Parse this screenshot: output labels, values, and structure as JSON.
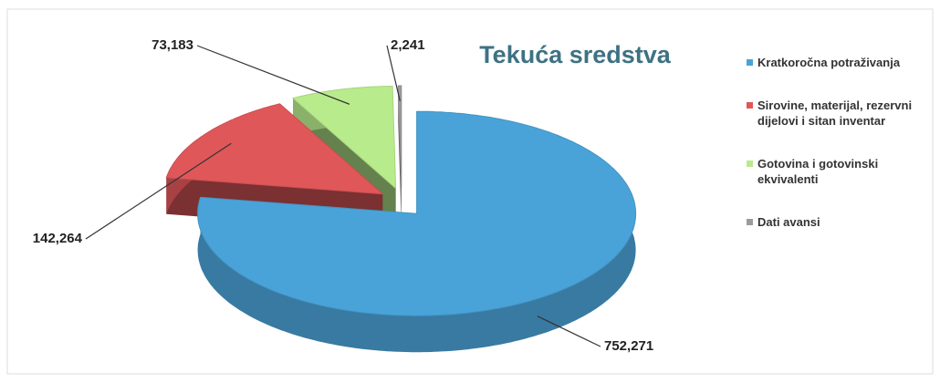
{
  "chart_data": {
    "type": "pie",
    "title": "Tekuća sredstva",
    "categories": [
      "Kratkoročna potraživanja",
      "Sirovine, materijal, rezervni dijelovi i sitan inventar",
      "Gotovina i gotovinski ekvivalenti",
      "Dati avansi"
    ],
    "values": [
      752271,
      142264,
      73183,
      2241
    ],
    "value_labels": [
      "752,271",
      "142,264",
      "73,183",
      "2,241"
    ],
    "colors": [
      "#4aa3d8",
      "#e0575a",
      "#b8eb8c",
      "#9c9c9c"
    ],
    "legend": "right"
  }
}
